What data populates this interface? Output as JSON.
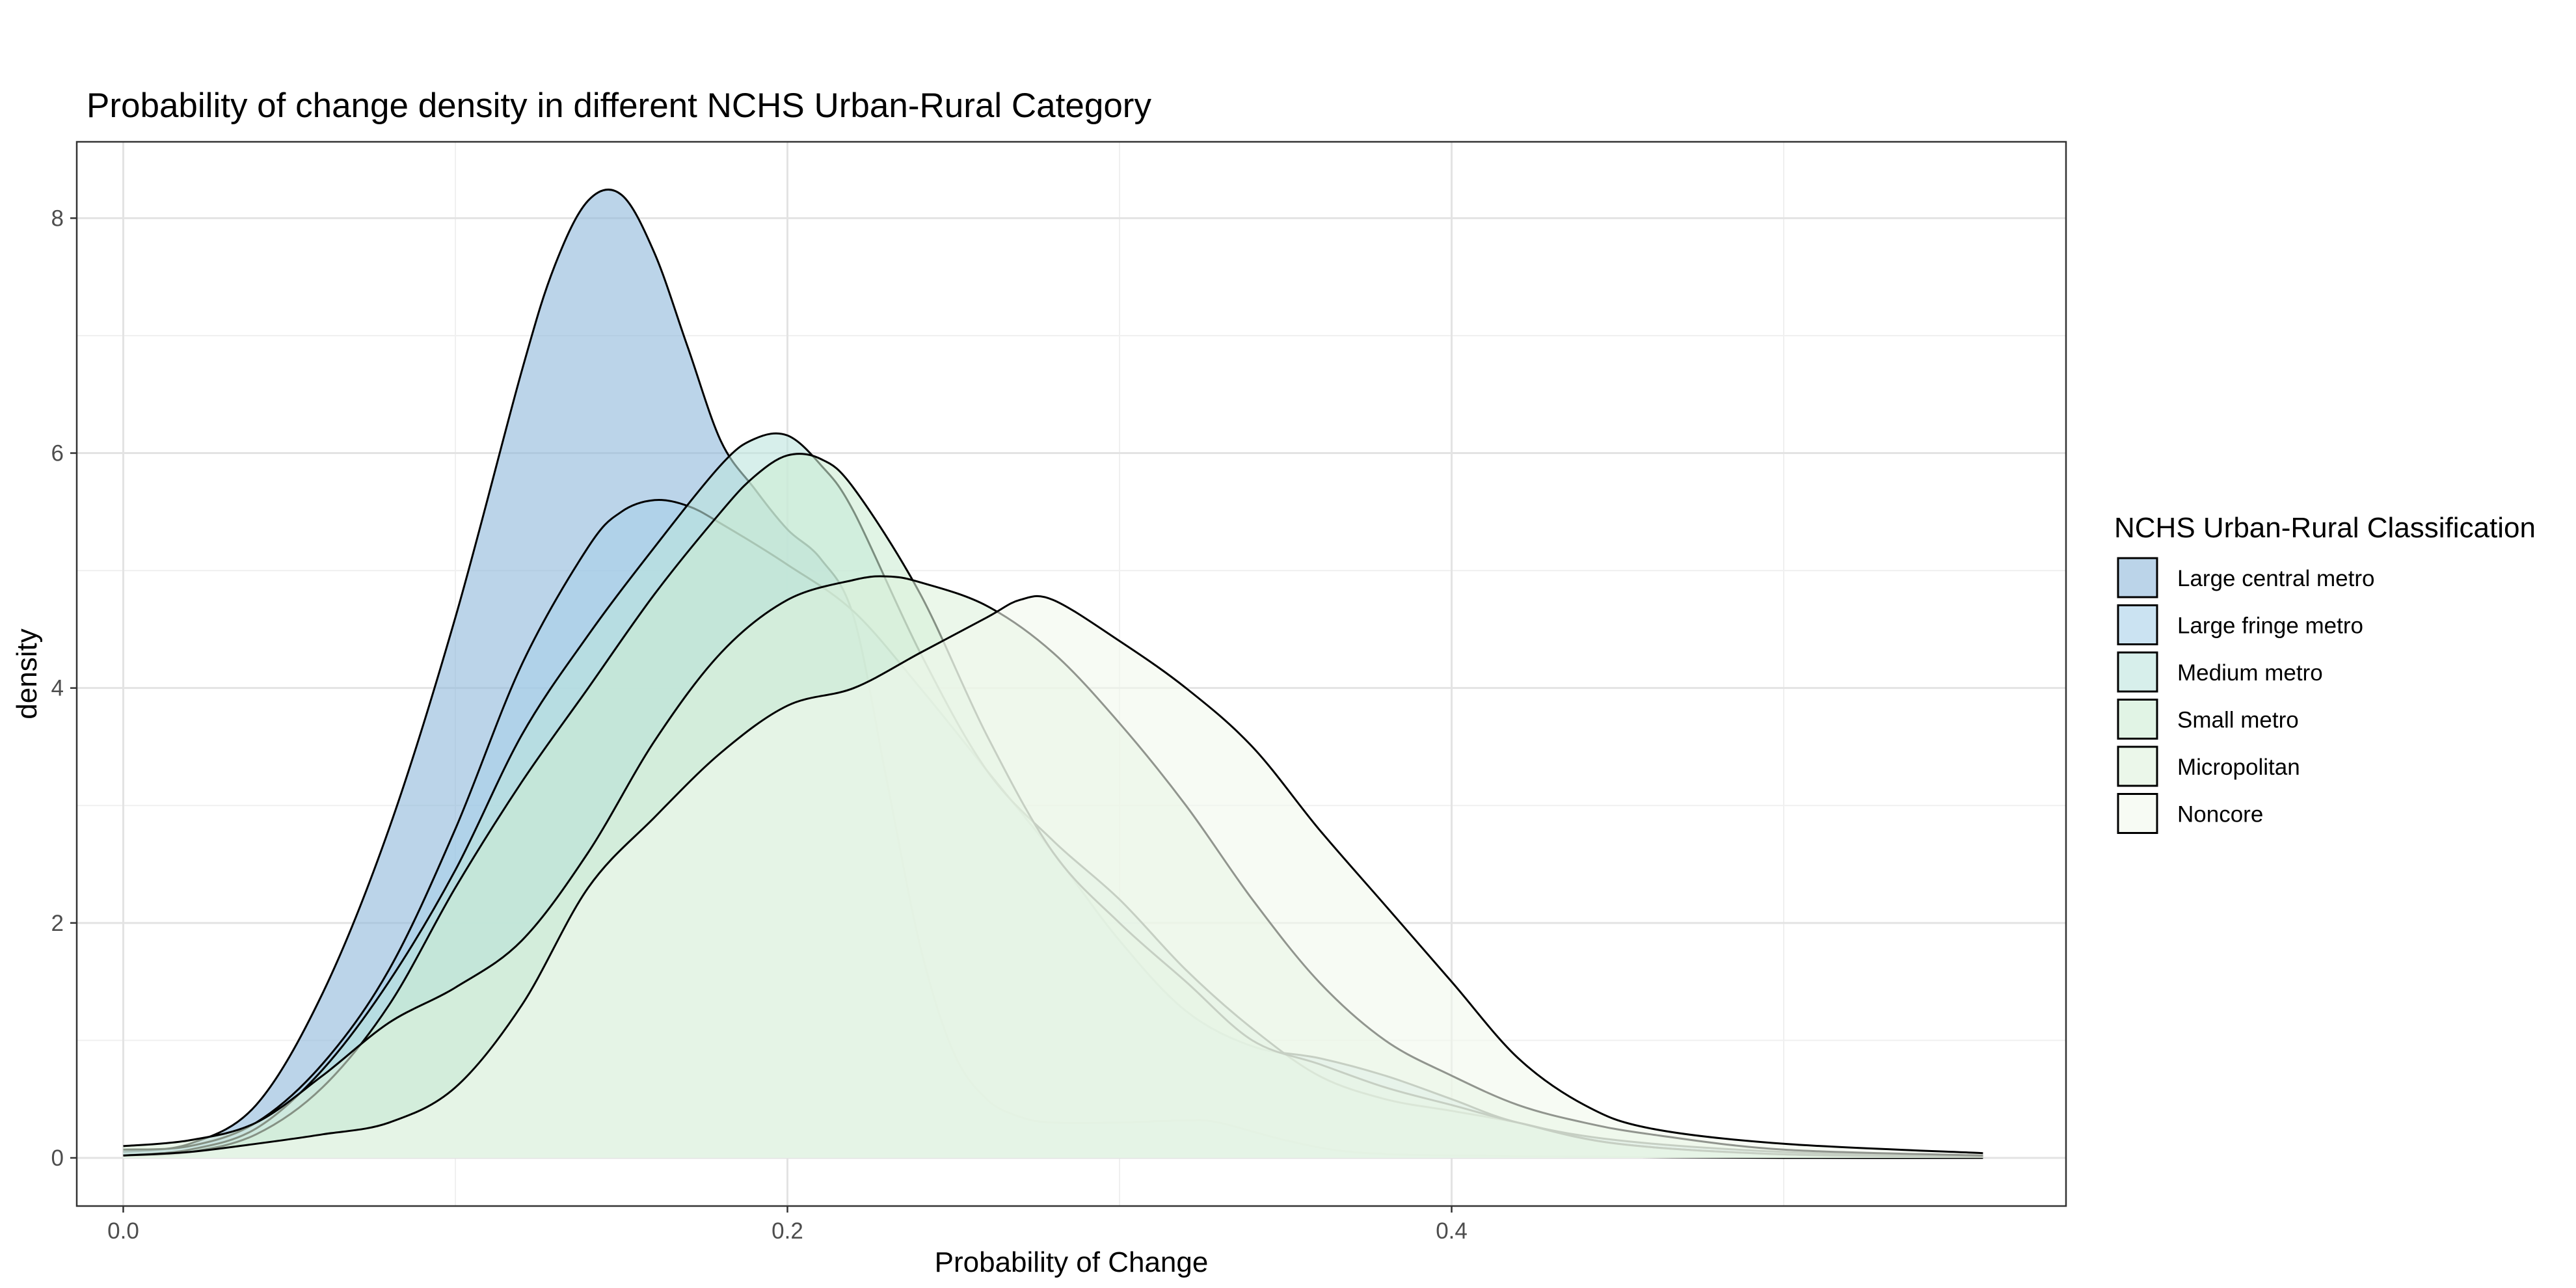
{
  "chart_data": {
    "type": "area",
    "subtype": "density",
    "title": "Probability of change density in different NCHS Urban-Rural Category",
    "xlabel": "Probability of Change",
    "ylabel": "density",
    "xlim": [
      -0.014,
      0.585
    ],
    "ylim": [
      -0.41,
      8.65
    ],
    "x_ticks": [
      0.0,
      0.2,
      0.4
    ],
    "x_tick_labels": [
      "0.0",
      "0.2",
      "0.4"
    ],
    "y_ticks": [
      0,
      2,
      4,
      6,
      8
    ],
    "y_tick_labels": [
      "0",
      "2",
      "4",
      "6",
      "8"
    ],
    "x_minor_grid": [
      0.1,
      0.3,
      0.5
    ],
    "y_minor_grid": [
      1,
      3,
      5,
      7
    ],
    "grid": true,
    "legend_position": "right",
    "legend_title": "NCHS Urban-Rural Classification",
    "fill_opacity": 0.6,
    "series": [
      {
        "name": "Large central metro",
        "color": "#8db7da",
        "x": [
          0.0,
          0.02,
          0.04,
          0.06,
          0.08,
          0.1,
          0.12,
          0.13,
          0.14,
          0.15,
          0.16,
          0.17,
          0.18,
          0.19,
          0.2,
          0.21,
          0.22,
          0.23,
          0.24,
          0.25,
          0.26,
          0.27,
          0.28,
          0.3,
          0.32,
          0.33,
          0.35,
          0.37,
          0.4,
          0.45,
          0.5,
          0.56
        ],
        "y": [
          0.05,
          0.12,
          0.45,
          1.4,
          2.8,
          4.6,
          6.7,
          7.6,
          8.15,
          8.2,
          7.7,
          6.9,
          6.1,
          5.7,
          5.35,
          5.1,
          4.6,
          3.2,
          1.8,
          0.9,
          0.5,
          0.35,
          0.3,
          0.3,
          0.32,
          0.3,
          0.15,
          0.05,
          0.02,
          0.01,
          0.0,
          0.0
        ]
      },
      {
        "name": "Large fringe metro",
        "color": "#a8d1e9",
        "x": [
          0.0,
          0.02,
          0.04,
          0.06,
          0.08,
          0.1,
          0.12,
          0.14,
          0.15,
          0.16,
          0.17,
          0.18,
          0.2,
          0.22,
          0.24,
          0.26,
          0.28,
          0.3,
          0.32,
          0.34,
          0.36,
          0.38,
          0.4,
          0.42,
          0.45,
          0.5,
          0.56
        ],
        "y": [
          0.07,
          0.1,
          0.3,
          0.8,
          1.6,
          2.8,
          4.2,
          5.2,
          5.5,
          5.6,
          5.55,
          5.4,
          5.05,
          4.65,
          4.0,
          3.3,
          2.6,
          1.85,
          1.25,
          0.95,
          0.85,
          0.7,
          0.5,
          0.3,
          0.15,
          0.05,
          0.01
        ]
      },
      {
        "name": "Medium metro",
        "color": "#bde5de",
        "x": [
          0.0,
          0.02,
          0.04,
          0.06,
          0.08,
          0.1,
          0.12,
          0.14,
          0.16,
          0.18,
          0.19,
          0.2,
          0.21,
          0.22,
          0.24,
          0.26,
          0.28,
          0.3,
          0.32,
          0.34,
          0.36,
          0.38,
          0.4,
          0.42,
          0.45,
          0.5,
          0.56
        ],
        "y": [
          0.02,
          0.07,
          0.25,
          0.75,
          1.5,
          2.45,
          3.6,
          4.45,
          5.2,
          5.9,
          6.12,
          6.15,
          5.9,
          5.5,
          4.3,
          3.3,
          2.7,
          2.2,
          1.6,
          1.1,
          0.7,
          0.5,
          0.4,
          0.3,
          0.12,
          0.03,
          0.01
        ]
      },
      {
        "name": "Small metro",
        "color": "#cdecd3",
        "x": [
          0.0,
          0.02,
          0.04,
          0.06,
          0.08,
          0.1,
          0.12,
          0.14,
          0.16,
          0.18,
          0.19,
          0.2,
          0.21,
          0.22,
          0.24,
          0.26,
          0.28,
          0.3,
          0.32,
          0.34,
          0.36,
          0.38,
          0.4,
          0.42,
          0.45,
          0.5,
          0.56
        ],
        "y": [
          0.02,
          0.05,
          0.2,
          0.6,
          1.3,
          2.3,
          3.2,
          4.0,
          4.8,
          5.5,
          5.8,
          5.98,
          5.95,
          5.7,
          4.8,
          3.6,
          2.6,
          2.0,
          1.5,
          1.0,
          0.8,
          0.6,
          0.45,
          0.3,
          0.12,
          0.03,
          0.01
        ]
      },
      {
        "name": "Micropolitan",
        "color": "#def2dc",
        "x": [
          0.0,
          0.02,
          0.04,
          0.06,
          0.08,
          0.1,
          0.12,
          0.14,
          0.16,
          0.18,
          0.2,
          0.22,
          0.23,
          0.24,
          0.26,
          0.28,
          0.3,
          0.32,
          0.34,
          0.36,
          0.38,
          0.4,
          0.42,
          0.44,
          0.46,
          0.5,
          0.56
        ],
        "y": [
          0.1,
          0.15,
          0.3,
          0.7,
          1.15,
          1.45,
          1.85,
          2.6,
          3.55,
          4.3,
          4.75,
          4.92,
          4.95,
          4.9,
          4.7,
          4.3,
          3.7,
          3.0,
          2.2,
          1.5,
          1.0,
          0.7,
          0.45,
          0.3,
          0.2,
          0.07,
          0.02
        ]
      },
      {
        "name": "Noncore",
        "color": "#f1f8ec",
        "x": [
          0.0,
          0.02,
          0.04,
          0.06,
          0.08,
          0.1,
          0.12,
          0.14,
          0.16,
          0.18,
          0.2,
          0.22,
          0.24,
          0.26,
          0.27,
          0.28,
          0.3,
          0.32,
          0.34,
          0.36,
          0.38,
          0.4,
          0.42,
          0.44,
          0.46,
          0.5,
          0.56
        ],
        "y": [
          0.02,
          0.05,
          0.12,
          0.2,
          0.3,
          0.6,
          1.3,
          2.3,
          2.9,
          3.45,
          3.85,
          4.0,
          4.3,
          4.6,
          4.75,
          4.75,
          4.4,
          4.0,
          3.5,
          2.8,
          2.15,
          1.5,
          0.85,
          0.45,
          0.25,
          0.12,
          0.04
        ]
      }
    ]
  }
}
